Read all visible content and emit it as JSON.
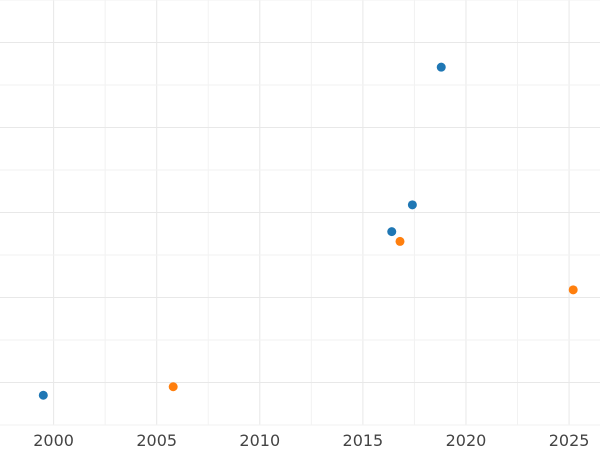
{
  "chart_data": {
    "type": "scatter",
    "title": "",
    "xlabel": "",
    "ylabel": "",
    "x_ticks": [
      2000,
      2005,
      2010,
      2015,
      2020,
      2025
    ],
    "xlim": [
      1997.4,
      2026.5
    ],
    "ylim": [
      0,
      1
    ],
    "grid": true,
    "legend": "none",
    "series": [
      {
        "color": "#1f77b4",
        "points": [
          {
            "x": 1999.5,
            "y": 0.07
          },
          {
            "x": 2016.4,
            "y": 0.455
          },
          {
            "x": 2017.4,
            "y": 0.518
          },
          {
            "x": 2018.8,
            "y": 0.842
          }
        ]
      },
      {
        "color": "#ff7f0e",
        "points": [
          {
            "x": 2005.8,
            "y": 0.09
          },
          {
            "x": 2016.8,
            "y": 0.432
          },
          {
            "x": 2025.2,
            "y": 0.318
          }
        ]
      }
    ]
  }
}
